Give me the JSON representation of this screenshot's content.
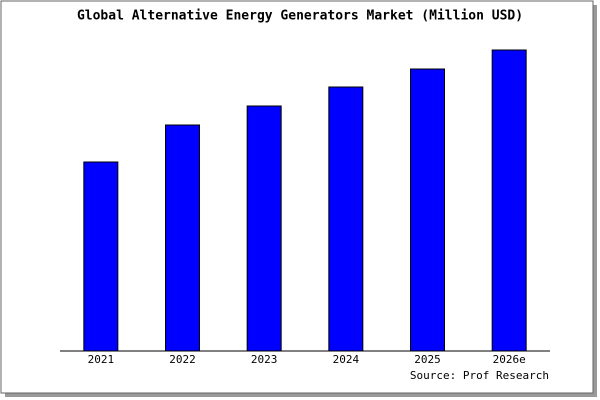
{
  "chart_data": {
    "type": "bar",
    "title": "Global Alternative Energy Generators Market (Million USD)",
    "categories": [
      "2021",
      "2022",
      "2023",
      "2024",
      "2025",
      "2026e"
    ],
    "values": [
      189,
      226,
      245,
      264,
      282,
      301
    ],
    "color": "#0000ff",
    "ylim": [
      0,
      306
    ],
    "source": "Source: Prof Research"
  }
}
